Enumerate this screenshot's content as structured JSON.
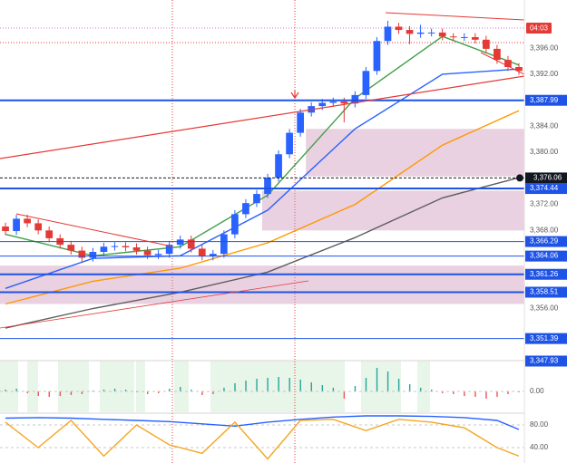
{
  "chart_data": [
    {
      "type": "candlestick",
      "countdown": "04:03",
      "up_color": "#2962ff",
      "down_color": "#e53935",
      "open": [
        3368.6,
        3367.9,
        3369.8,
        3369.1,
        3368.0,
        3366.8,
        3365.8,
        3364.9,
        3363.8,
        3364.7,
        3365.5,
        3365.6,
        3365.4,
        3364.9,
        3364.2,
        3364.4,
        3365.8,
        3366.6,
        3365.2,
        3364.0,
        3364.4,
        3367.4,
        3370.5,
        3372.2,
        3373.6,
        3376.1,
        3379.7,
        3383.0,
        3386.1,
        3387.1,
        3387.6,
        3387.8,
        3387.5,
        3388.8,
        3392.5,
        3397.1,
        3399.3,
        3398.8,
        3398.2,
        3398.4,
        3398.4,
        3397.8,
        3397.7,
        3397.7,
        3397.3,
        3395.9,
        3394.2,
        3393.1
      ],
      "high": [
        3369.2,
        3370.4,
        3370.4,
        3369.7,
        3368.6,
        3367.4,
        3366.4,
        3365.5,
        3365.3,
        3366.1,
        3366.2,
        3366.2,
        3366.0,
        3365.5,
        3365.0,
        3366.4,
        3367.2,
        3367.2,
        3365.8,
        3365.0,
        3368.0,
        3371.1,
        3372.8,
        3374.2,
        3376.7,
        3380.3,
        3383.6,
        3386.7,
        3387.7,
        3388.2,
        3388.4,
        3388.4,
        3389.4,
        3393.1,
        3397.7,
        3400.2,
        3399.9,
        3399.4,
        3399.6,
        3399.0,
        3399.0,
        3398.3,
        3398.3,
        3398.3,
        3397.9,
        3396.5,
        3394.8,
        3393.7
      ],
      "low": [
        3367.3,
        3367.3,
        3368.5,
        3367.4,
        3366.2,
        3365.2,
        3364.3,
        3363.2,
        3363.2,
        3364.1,
        3364.9,
        3364.8,
        3364.3,
        3363.6,
        3363.6,
        3363.8,
        3365.2,
        3364.6,
        3363.4,
        3363.4,
        3363.8,
        3366.8,
        3369.9,
        3371.6,
        3373.0,
        3375.5,
        3379.1,
        3382.4,
        3385.5,
        3386.5,
        3387.0,
        3384.6,
        3386.9,
        3388.2,
        3391.9,
        3396.5,
        3398.2,
        3396.6,
        3397.6,
        3397.8,
        3397.2,
        3397.1,
        3397.1,
        3396.7,
        3395.3,
        3393.6,
        3392.5,
        3391.9
      ],
      "close": [
        3367.9,
        3369.8,
        3369.1,
        3368.0,
        3366.8,
        3365.8,
        3364.9,
        3363.8,
        3364.7,
        3365.5,
        3365.6,
        3365.4,
        3364.9,
        3364.2,
        3364.4,
        3365.8,
        3366.6,
        3365.2,
        3364.0,
        3364.4,
        3367.4,
        3370.5,
        3372.2,
        3373.6,
        3376.1,
        3379.7,
        3383.0,
        3386.1,
        3387.1,
        3387.6,
        3387.8,
        3387.5,
        3388.8,
        3392.5,
        3397.1,
        3399.3,
        3398.8,
        3398.2,
        3398.4,
        3398.4,
        3397.8,
        3397.7,
        3397.7,
        3397.3,
        3395.9,
        3394.2,
        3393.1,
        3392.5
      ],
      "series": [
        {
          "color": "#43a047",
          "x": [
            0,
            8,
            16,
            24,
            32,
            40,
            47
          ],
          "values": [
            3367.4,
            3364.1,
            3365.5,
            3373.4,
            3388.3,
            3397.8,
            3393.4
          ]
        },
        {
          "color": "#2962ff",
          "x": [
            0,
            8,
            16,
            24,
            32,
            40,
            47
          ],
          "values": [
            3359.1,
            3363.7,
            3364.1,
            3371.1,
            3383.6,
            3392.0,
            3392.8
          ]
        },
        {
          "color": "#ff9800",
          "x": [
            0,
            8,
            16,
            24,
            32,
            40,
            47
          ],
          "values": [
            3356.7,
            3360.2,
            3362.2,
            3366.1,
            3372.0,
            3381.1,
            3386.4
          ]
        },
        {
          "color": "#5d5d5d",
          "x": [
            0,
            8,
            16,
            24,
            32,
            40,
            47
          ],
          "values": [
            3353.0,
            3356.0,
            3358.5,
            3361.6,
            3366.9,
            3373.0,
            3376.1
          ]
        }
      ],
      "zones": [
        {
          "start": 28,
          "low": 3376.3,
          "high": 3383.6
        },
        {
          "start": 24,
          "low": 3368.0,
          "high": 3374.1
        },
        {
          "start": 0,
          "low": 3356.7,
          "high": 3362.6
        }
      ],
      "ylim": [
        3348,
        3403.4
      ],
      "yticks": [
        {
          "value": 3396,
          "label": "3,396.00"
        },
        {
          "value": 3392,
          "label": "3,392.00"
        },
        {
          "value": 3384,
          "label": "3,384.00"
        },
        {
          "value": 3380,
          "label": "3,380.00"
        },
        {
          "value": 3372,
          "label": "3,372.00"
        },
        {
          "value": 3368,
          "label": "3,368.00"
        },
        {
          "value": 3356,
          "label": "3,356.00"
        }
      ],
      "levels": [
        {
          "value": 3387.99,
          "label": "3,387.99",
          "color": "#1e53e5",
          "width": 2
        },
        {
          "value": 3376.06,
          "label": "3,376.06",
          "color": "#131722",
          "width": 1,
          "dash": true
        },
        {
          "value": 3374.44,
          "label": "3,374.44",
          "color": "#1e53e5",
          "width": 2
        },
        {
          "value": 3366.29,
          "label": "3,366.29",
          "color": "#1e53e5",
          "width": 1
        },
        {
          "value": 3364.06,
          "label": "3,364.06",
          "color": "#1e53e5",
          "width": 1
        },
        {
          "value": 3361.26,
          "label": "3,361.26",
          "color": "#1e53e5",
          "width": 2
        },
        {
          "value": 3358.51,
          "label": "3,358.51",
          "color": "#1e53e5",
          "width": 2
        },
        {
          "value": 3351.39,
          "label": "3,351.39",
          "color": "#1e53e5",
          "width": 1
        },
        {
          "value": 3347.93,
          "label": "3,347.93",
          "color": "#1e53e5",
          "width": 1
        }
      ]
    },
    {
      "type": "bar",
      "up_color": "#26a69a",
      "down_color": "#ef5350",
      "values": [
        0.2,
        0.3,
        -0.2,
        -0.5,
        -0.6,
        -0.5,
        -0.4,
        -0.3,
        0.1,
        0.2,
        0.3,
        0.2,
        -0.1,
        -0.3,
        -0.2,
        0.3,
        0.5,
        0.2,
        -0.4,
        -0.3,
        0.4,
        0.9,
        1.2,
        1.4,
        1.5,
        1.6,
        1.5,
        1.3,
        1.0,
        0.7,
        0.4,
        -0.8,
        0.6,
        1.5,
        2.6,
        2.2,
        1.4,
        0.8,
        0.4,
        0.2,
        -0.2,
        -0.3,
        -0.5,
        -0.6,
        -0.8,
        -0.6,
        -0.3,
        -0.1
      ],
      "ylim": [
        -2.3,
        3.4
      ],
      "yticks": [
        {
          "value": 0,
          "label": "0.00"
        }
      ]
    },
    {
      "type": "line",
      "series": [
        {
          "color": "#2962ff",
          "x": [
            0,
            3,
            6,
            9,
            12,
            15,
            18,
            21,
            24,
            27,
            30,
            33,
            36,
            39,
            42,
            45,
            47
          ],
          "values": [
            92,
            93,
            92,
            90,
            88,
            86,
            82,
            78,
            85,
            90,
            94,
            96,
            96,
            95,
            93,
            88,
            72
          ]
        },
        {
          "color": "#f5a623",
          "x": [
            0,
            3,
            6,
            9,
            12,
            15,
            18,
            21,
            24,
            27,
            30,
            33,
            36,
            39,
            42,
            45,
            47
          ],
          "values": [
            85,
            40,
            88,
            25,
            80,
            45,
            30,
            85,
            20,
            88,
            90,
            70,
            90,
            85,
            75,
            40,
            25
          ]
        }
      ],
      "ylim": [
        0,
        100
      ],
      "yticks": [
        {
          "value": 80,
          "label": "80.00"
        },
        {
          "value": 40,
          "label": "40.00"
        }
      ]
    }
  ]
}
